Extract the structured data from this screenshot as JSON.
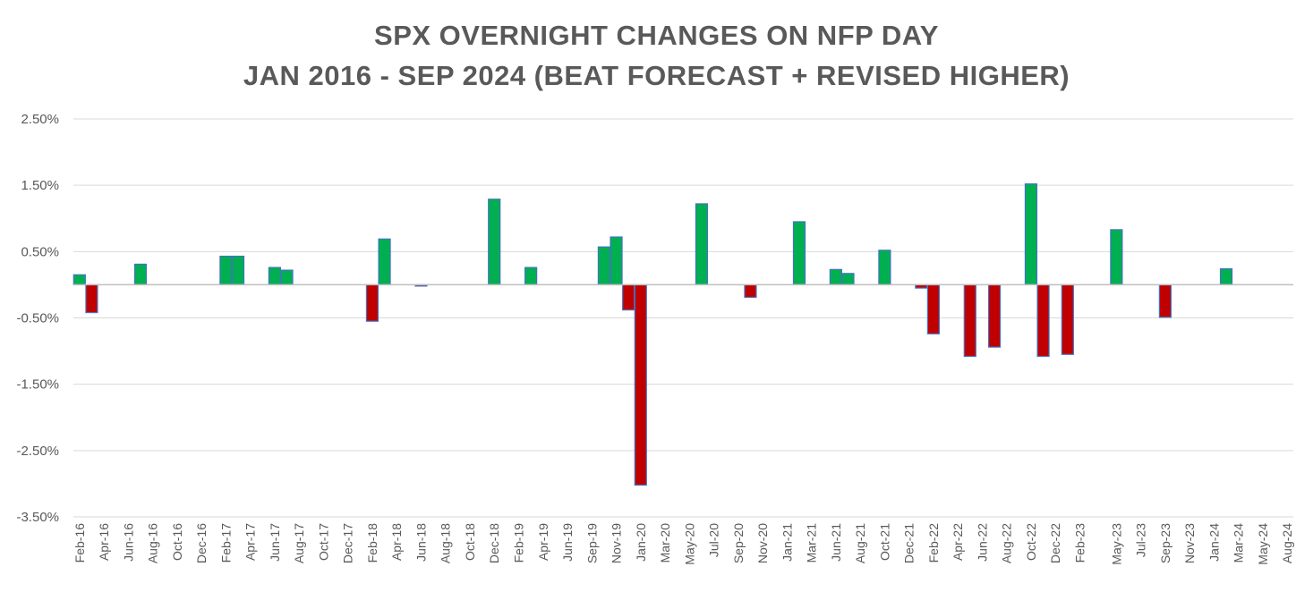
{
  "chart_data": {
    "type": "bar",
    "title_lines": [
      "SPX OVERNIGHT CHANGES ON NFP DAY",
      "JAN 2016 - SEP 2024 (BEAT FORECAST + REVISED HIGHER)"
    ],
    "ylim": [
      -3.5,
      2.5
    ],
    "y_ticks": [
      2.5,
      1.5,
      0.5,
      -0.5,
      -1.5,
      -2.5,
      -3.5
    ],
    "y_tick_labels": [
      "2.50%",
      "1.50%",
      "0.50%",
      "-0.50%",
      "-1.50%",
      "-2.50%",
      "-3.50%"
    ],
    "grid": true,
    "legend": "none",
    "categories": [
      "Feb-16",
      "Mar-16",
      "Apr-16",
      "May-16",
      "Jun-16",
      "Jul-16",
      "Aug-16",
      "Sep-16",
      "Oct-16",
      "Nov-16",
      "Dec-16",
      "Jan-17",
      "Feb-17",
      "Mar-17",
      "Apr-17",
      "May-17",
      "Jun-17",
      "Jul-17",
      "Aug-17",
      "Sep-17",
      "Oct-17",
      "Nov-17",
      "Dec-17",
      "Jan-18",
      "Feb-18",
      "Mar-18",
      "Apr-18",
      "May-18",
      "Jun-18",
      "Jul-18",
      "Aug-18",
      "Sep-18",
      "Oct-18",
      "Nov-18",
      "Dec-18",
      "Jan-19",
      "Feb-19",
      "Mar-19",
      "Apr-19",
      "May-19",
      "Jun-19",
      "Jul-19",
      "Sep-19",
      "Oct-19",
      "Nov-19",
      "Dec-19",
      "Jan-20",
      "Feb-20",
      "Mar-20",
      "Apr-20",
      "May-20",
      "Jun-20",
      "Jul-20",
      "Aug-20",
      "Sep-20",
      "Oct-20",
      "Nov-20",
      "Dec-20",
      "Jan-21",
      "Feb-21",
      "Mar-21",
      "Apr-21",
      "Jun-21",
      "Jul-21",
      "Aug-21",
      "Sep-21",
      "Oct-21",
      "Nov-21",
      "Dec-21",
      "Jan-22",
      "Feb-22",
      "Mar-22",
      "Apr-22",
      "May-22",
      "Jun-22",
      "Jul-22",
      "Aug-22",
      "Sep-22",
      "Oct-22",
      "Nov-22",
      "Dec-22",
      "Jan-23",
      "Feb-23",
      "Mar-23",
      "Apr-23",
      "May-23",
      "Jun-23",
      "Jul-23",
      "Aug-23",
      "Sep-23",
      "Oct-23",
      "Nov-23",
      "Dec-23",
      "Jan-24",
      "Feb-24",
      "Mar-24",
      "Apr-24",
      "May-24",
      "Jul-24",
      "Aug-24"
    ],
    "x_tick_labels": [
      "Feb-16",
      "Apr-16",
      "Jun-16",
      "Aug-16",
      "Oct-16",
      "Dec-16",
      "Feb-17",
      "Apr-17",
      "Jun-17",
      "Aug-17",
      "Oct-17",
      "Dec-17",
      "Feb-18",
      "Apr-18",
      "Jun-18",
      "Aug-18",
      "Oct-18",
      "Dec-18",
      "Feb-19",
      "Apr-19",
      "Jun-19",
      "Sep-19",
      "Nov-19",
      "Jan-20",
      "Mar-20",
      "May-20",
      "Jul-20",
      "Sep-20",
      "Nov-20",
      "Jan-21",
      "Mar-21",
      "Jun-21",
      "Aug-21",
      "Oct-21",
      "Dec-21",
      "Feb-22",
      "Apr-22",
      "Jun-22",
      "Aug-22",
      "Oct-22",
      "Dec-22",
      "Feb-23",
      "May-23",
      "Jul-23",
      "Sep-23",
      "Nov-23",
      "Jan-24",
      "Mar-24",
      "May-24",
      "Aug-24"
    ],
    "values": [
      0.15,
      -0.42,
      0,
      0,
      0,
      0.31,
      0,
      0,
      0,
      0,
      0,
      0,
      0.43,
      0.43,
      0,
      0,
      0.26,
      0.22,
      0,
      0,
      0,
      0,
      0,
      0,
      -0.55,
      0.69,
      0,
      0,
      -0.02,
      0,
      0,
      0,
      0,
      0,
      1.29,
      0,
      0,
      0.26,
      0,
      0,
      0,
      0,
      0,
      0.57,
      0.72,
      -0.38,
      -3.02,
      0,
      0,
      0,
      0,
      1.22,
      0,
      0,
      0,
      -0.19,
      0,
      0,
      0,
      0.95,
      0,
      0,
      0.23,
      0.17,
      0,
      0,
      0.52,
      0,
      0,
      -0.05,
      -0.74,
      0,
      0,
      -1.08,
      0,
      -0.94,
      0,
      0,
      1.52,
      -1.08,
      0,
      -1.05,
      0,
      0,
      0,
      0.83,
      0,
      0,
      0,
      -0.49,
      0,
      0,
      0,
      0,
      0.24,
      0,
      0,
      0,
      0,
      0
    ],
    "colors": {
      "positive": "#00b050",
      "negative": "#c00000",
      "bar_outline": "#4472c4",
      "grid": "#d9d9d9",
      "axis": "#bfbfbf",
      "text": "#595959"
    }
  }
}
